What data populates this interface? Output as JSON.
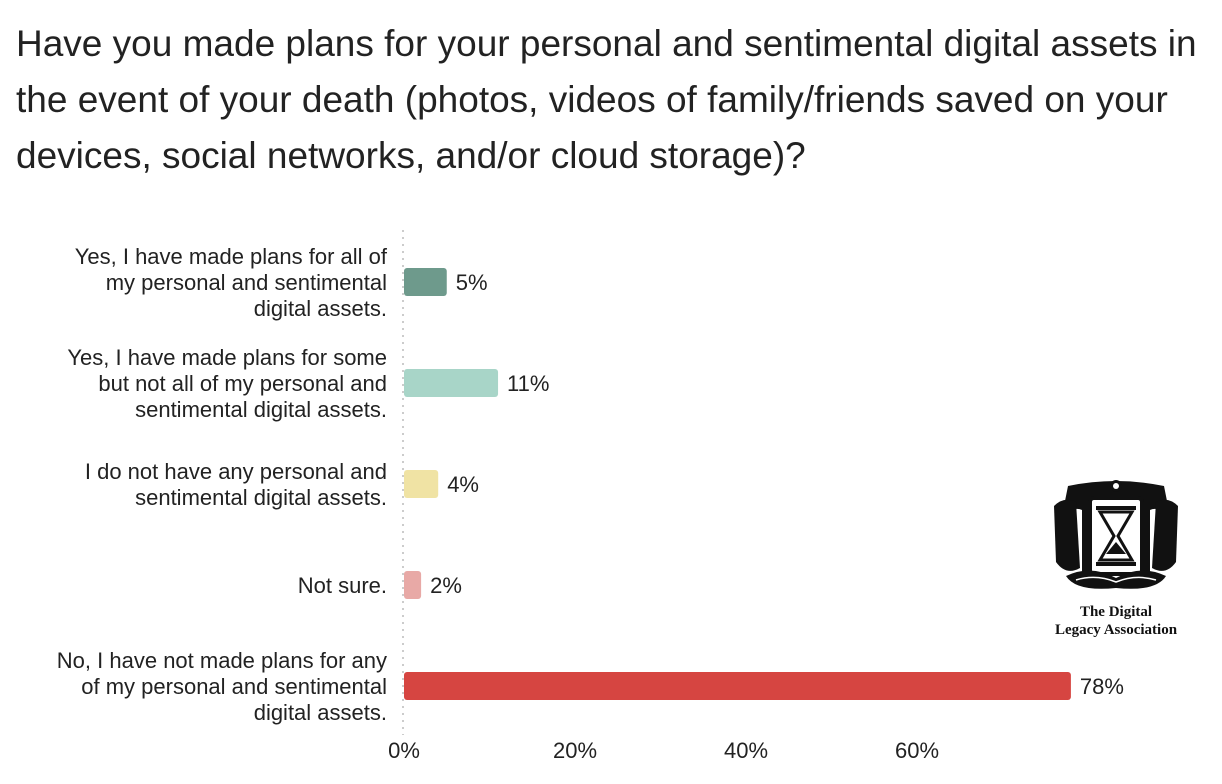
{
  "chart_data": {
    "type": "bar",
    "orientation": "horizontal",
    "title": "Have you made plans for your personal and sentimental digital assets in the event of your death (photos, videos of family/friends saved on your devices, social networks, and/or cloud storage)?",
    "categories": [
      "Yes, I have made plans for all of my personal and sentimental digital assets.",
      "Yes, I have made plans for some but not all of my personal and sentimental digital assets.",
      "I do not have any personal and sentimental digital assets.",
      "Not sure.",
      "No, I have not made plans for any of my personal and sentimental digital assets."
    ],
    "category_lines": [
      [
        "Yes, I have made plans for all of",
        "my personal and sentimental",
        "digital assets."
      ],
      [
        "Yes, I have made plans for some",
        "but not all of my personal and",
        "sentimental digital assets."
      ],
      [
        "I do not have any personal and",
        "sentimental digital assets."
      ],
      [
        "Not sure."
      ],
      [
        "No, I have not made plans for any",
        "of my personal and sentimental",
        "digital assets."
      ]
    ],
    "values": [
      5,
      11,
      4,
      2,
      78
    ],
    "value_labels": [
      "5%",
      "11%",
      "4%",
      "2%",
      "78%"
    ],
    "colors": [
      "#6e9a8c",
      "#a8d5c8",
      "#f0e3a4",
      "#e8a9a6",
      "#d64541"
    ],
    "xlim": [
      0,
      80
    ],
    "xticks": [
      0,
      20,
      40,
      60
    ],
    "xtick_labels": [
      "0%",
      "20%",
      "40%",
      "60%"
    ],
    "grid": false,
    "legend": "none"
  },
  "logo": {
    "line1": "The Digital",
    "line2": "Legacy Association"
  }
}
